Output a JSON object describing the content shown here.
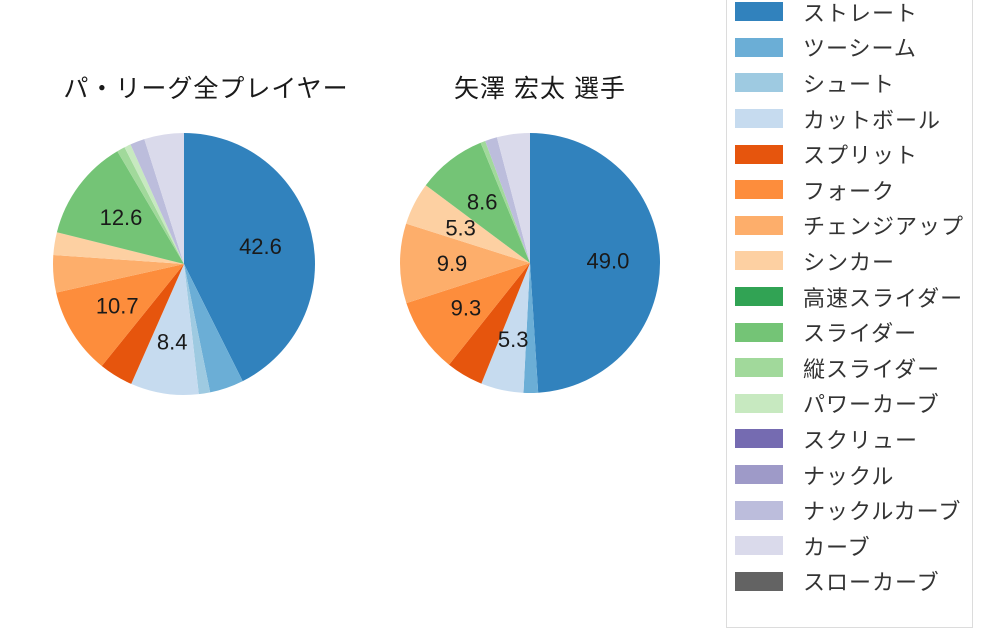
{
  "chart_data": {
    "type": "pie",
    "unit": "percent",
    "start_angle_deg": 0,
    "direction": "clockwise",
    "label_min_percent": 5.0,
    "value_decimals": 1,
    "legend_position": "right",
    "categories": [
      "ストレート",
      "ツーシーム",
      "シュート",
      "カットボール",
      "スプリット",
      "フォーク",
      "チェンジアップ",
      "シンカー",
      "高速スライダー",
      "スライダー",
      "縦スライダー",
      "パワーカーブ",
      "スクリュー",
      "ナックル",
      "ナックルカーブ",
      "カーブ",
      "スローカーブ"
    ],
    "colors": [
      "#3182bd",
      "#6baed6",
      "#9ecae1",
      "#c6dbef",
      "#e6550d",
      "#fd8d3c",
      "#fdae6b",
      "#fdd0a2",
      "#31a354",
      "#74c476",
      "#a1d99b",
      "#c7e9c0",
      "#756bb1",
      "#9e9ac8",
      "#bcbddc",
      "#dadaeb",
      "#636363"
    ],
    "series": [
      {
        "name": "パ・リーグ全プレイヤー",
        "values": [
          42.6,
          4.2,
          1.4,
          8.4,
          4.2,
          10.7,
          4.6,
          2.8,
          0,
          12.6,
          1.0,
          0.8,
          0,
          0,
          1.8,
          4.9,
          0
        ],
        "visible_value_labels": [
          "42.6",
          "8.4",
          "10.7",
          "12.6"
        ]
      },
      {
        "name": "矢澤 宏太 選手",
        "values": [
          49.0,
          1.8,
          0,
          5.3,
          4.6,
          9.3,
          9.9,
          5.3,
          0,
          8.6,
          0.6,
          0,
          0,
          0,
          1.5,
          4.1,
          0
        ],
        "visible_value_labels": [
          "49.0",
          "5.3",
          "9.3",
          "9.9",
          "5.3",
          "8.6"
        ]
      }
    ]
  },
  "legend": {
    "items": [
      "ストレート",
      "ツーシーム",
      "シュート",
      "カットボール",
      "スプリット",
      "フォーク",
      "チェンジアップ",
      "シンカー",
      "高速スライダー",
      "スライダー",
      "縦スライダー",
      "パワーカーブ",
      "スクリュー",
      "ナックル",
      "ナックルカーブ",
      "カーブ",
      "スローカーブ"
    ]
  }
}
